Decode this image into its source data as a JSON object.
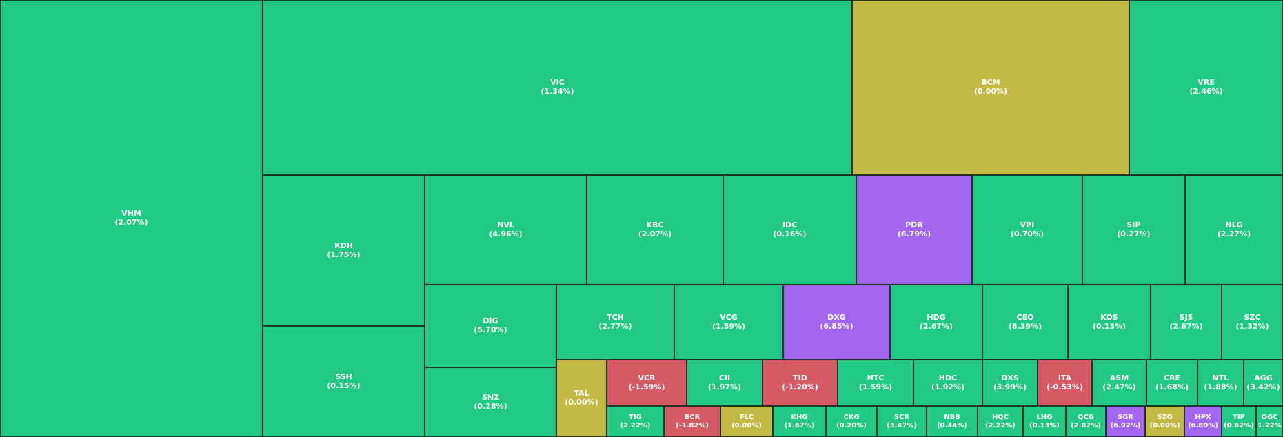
{
  "colors": {
    "up": "#22c985",
    "flat": "#c3b945",
    "down": "#d65a65",
    "ceiling": "#a366f0",
    "border": "#213329"
  },
  "chart_data": {
    "type": "heatmap",
    "items": [
      {
        "ticker": "VHM",
        "change": "(2.07%)",
        "status": "up"
      },
      {
        "ticker": "VIC",
        "change": "(1.34%)",
        "status": "up"
      },
      {
        "ticker": "BCM",
        "change": "(0.00%)",
        "status": "flat"
      },
      {
        "ticker": "VRE",
        "change": "(2.46%)",
        "status": "up"
      },
      {
        "ticker": "KDH",
        "change": "(1.75%)",
        "status": "up"
      },
      {
        "ticker": "SSH",
        "change": "(0.15%)",
        "status": "up"
      },
      {
        "ticker": "NVL",
        "change": "(4.96%)",
        "status": "up"
      },
      {
        "ticker": "KBC",
        "change": "(2.07%)",
        "status": "up"
      },
      {
        "ticker": "IDC",
        "change": "(0.16%)",
        "status": "up"
      },
      {
        "ticker": "PDR",
        "change": "(6.79%)",
        "status": "ceiling"
      },
      {
        "ticker": "VPI",
        "change": "(0.70%)",
        "status": "up"
      },
      {
        "ticker": "SIP",
        "change": "(0.27%)",
        "status": "up"
      },
      {
        "ticker": "NLG",
        "change": "(2.27%)",
        "status": "up"
      },
      {
        "ticker": "DIG",
        "change": "(5.70%)",
        "status": "up"
      },
      {
        "ticker": "SNZ",
        "change": "(0.28%)",
        "status": "up"
      },
      {
        "ticker": "TCH",
        "change": "(2.77%)",
        "status": "up"
      },
      {
        "ticker": "VCG",
        "change": "(1.59%)",
        "status": "up"
      },
      {
        "ticker": "DXG",
        "change": "(6.85%)",
        "status": "ceiling"
      },
      {
        "ticker": "HDG",
        "change": "(2.67%)",
        "status": "up"
      },
      {
        "ticker": "CEO",
        "change": "(8.39%)",
        "status": "up"
      },
      {
        "ticker": "KOS",
        "change": "(0.13%)",
        "status": "up"
      },
      {
        "ticker": "SJS",
        "change": "(2.67%)",
        "status": "up"
      },
      {
        "ticker": "SZC",
        "change": "(1.32%)",
        "status": "up"
      },
      {
        "ticker": "TAL",
        "change": "(0.00%)",
        "status": "flat"
      },
      {
        "ticker": "VCR",
        "change": "(-1.59%)",
        "status": "down"
      },
      {
        "ticker": "CII",
        "change": "(1.97%)",
        "status": "up"
      },
      {
        "ticker": "TID",
        "change": "(-1.20%)",
        "status": "down"
      },
      {
        "ticker": "NTC",
        "change": "(1.59%)",
        "status": "up"
      },
      {
        "ticker": "HDC",
        "change": "(1.92%)",
        "status": "up"
      },
      {
        "ticker": "DXS",
        "change": "(3.99%)",
        "status": "up"
      },
      {
        "ticker": "ITA",
        "change": "(-0.53%)",
        "status": "down"
      },
      {
        "ticker": "ASM",
        "change": "(2.47%)",
        "status": "up"
      },
      {
        "ticker": "CRE",
        "change": "(1.68%)",
        "status": "up"
      },
      {
        "ticker": "NTL",
        "change": "(1.88%)",
        "status": "up"
      },
      {
        "ticker": "AGG",
        "change": "(3.42%)",
        "status": "up"
      },
      {
        "ticker": "TIG",
        "change": "(2.22%)",
        "status": "up"
      },
      {
        "ticker": "BCR",
        "change": "(-1.82%)",
        "status": "down"
      },
      {
        "ticker": "FLC",
        "change": "(0.00%)",
        "status": "flat"
      },
      {
        "ticker": "KHG",
        "change": "(1.67%)",
        "status": "up"
      },
      {
        "ticker": "CKG",
        "change": "(0.20%)",
        "status": "up"
      },
      {
        "ticker": "SCR",
        "change": "(3.47%)",
        "status": "up"
      },
      {
        "ticker": "NBB",
        "change": "(0.44%)",
        "status": "up"
      },
      {
        "ticker": "HQC",
        "change": "(2.22%)",
        "status": "up"
      },
      {
        "ticker": "LHG",
        "change": "(0.13%)",
        "status": "up"
      },
      {
        "ticker": "QCG",
        "change": "(2.87%)",
        "status": "up"
      },
      {
        "ticker": "SGR",
        "change": "(6.92%)",
        "status": "ceiling"
      },
      {
        "ticker": "SZG",
        "change": "(0.00%)",
        "status": "flat"
      },
      {
        "ticker": "HPX",
        "change": "(6.89%)",
        "status": "ceiling"
      },
      {
        "ticker": "TIP",
        "change": "(0.62%)",
        "status": "up"
      },
      {
        "ticker": "OGC",
        "change": "(1.22%)",
        "status": "up"
      }
    ]
  }
}
